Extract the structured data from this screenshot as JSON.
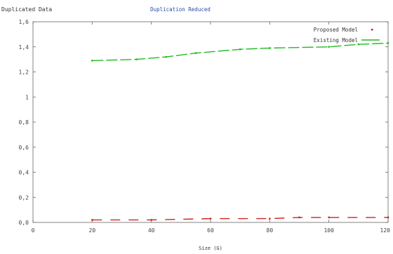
{
  "chart_data": {
    "type": "line",
    "title": "Duplication Reduced",
    "ylabel": "Duplicated Data",
    "xlabel": "Size (G)",
    "xlim": [
      0,
      12
    ],
    "ylim": [
      0.0,
      1.6
    ],
    "xticks": [
      0,
      2,
      4,
      6,
      8,
      10,
      12
    ],
    "xtick_labels": [
      "0",
      "20",
      "40",
      "60",
      "80",
      "100",
      "120"
    ],
    "yticks": [
      0.0,
      0.2,
      0.4,
      0.6,
      0.8,
      1.0,
      1.2,
      1.4,
      1.6
    ],
    "ytick_labels": [
      "0,0",
      "0,2",
      "0,4",
      "0,6",
      "0,8",
      "1",
      "1,2",
      "1,4",
      "1,6"
    ],
    "legend_position": "top-right",
    "grid": false,
    "series": [
      {
        "name": "Proposed Model",
        "color": "#cc2222",
        "x": [
          2,
          4,
          6,
          8,
          9,
          10,
          12
        ],
        "values": [
          0.02,
          0.02,
          0.03,
          0.03,
          0.04,
          0.04,
          0.04
        ]
      },
      {
        "name": "Existing Model",
        "color": "#22bb22",
        "x": [
          2,
          3.5,
          4.5,
          5.5,
          7,
          8,
          10,
          11,
          12
        ],
        "values": [
          1.29,
          1.3,
          1.32,
          1.35,
          1.38,
          1.39,
          1.4,
          1.42,
          1.43
        ]
      }
    ]
  }
}
